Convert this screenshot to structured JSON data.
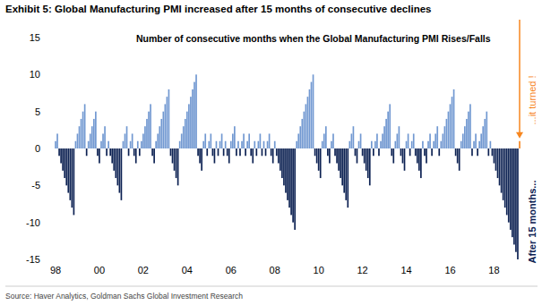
{
  "chart_data": {
    "type": "bar",
    "title": "Exhibit 5: Global Manufacturing PMI increased after 15 months of consecutive declines",
    "subtitle": "Number of consecutive months when the Global Manufacturing PMI Rises/Falls",
    "annotations": [
      "...it turned !",
      "After 15 months..."
    ],
    "source": "Source: Haver Analytics, Goldman Sachs Global Investment Research",
    "ylim": [
      -15,
      15
    ],
    "yticks": [
      -15,
      -10,
      -5,
      0,
      5,
      10,
      15
    ],
    "categories": [
      "98",
      null,
      null,
      null,
      null,
      null,
      null,
      null,
      null,
      null,
      null,
      null,
      null,
      null,
      null,
      null,
      null,
      null,
      null,
      null,
      null,
      null,
      null,
      null,
      "00",
      null,
      null,
      null,
      null,
      null,
      null,
      null,
      null,
      null,
      null,
      null,
      null,
      null,
      null,
      null,
      null,
      null,
      null,
      null,
      null,
      null,
      null,
      null,
      "02",
      null,
      null,
      null,
      null,
      null,
      null,
      null,
      null,
      null,
      null,
      null,
      null,
      null,
      null,
      null,
      null,
      null,
      null,
      null,
      null,
      null,
      null,
      null,
      "04",
      null,
      null,
      null,
      null,
      null,
      null,
      null,
      null,
      null,
      null,
      null,
      null,
      null,
      null,
      null,
      null,
      null,
      null,
      null,
      null,
      null,
      null,
      null,
      "06",
      null,
      null,
      null,
      null,
      null,
      null,
      null,
      null,
      null,
      null,
      null,
      null,
      null,
      null,
      null,
      null,
      null,
      null,
      null,
      null,
      null,
      null,
      null,
      "08",
      null,
      null,
      null,
      null,
      null,
      null,
      null,
      null,
      null,
      null,
      null,
      null,
      null,
      null,
      null,
      null,
      null,
      null,
      null,
      null,
      null,
      null,
      null,
      "10",
      null,
      null,
      null,
      null,
      null,
      null,
      null,
      null,
      null,
      null,
      null,
      null,
      null,
      null,
      null,
      null,
      null,
      null,
      null,
      null,
      null,
      null,
      null,
      "12",
      null,
      null,
      null,
      null,
      null,
      null,
      null,
      null,
      null,
      null,
      null,
      null,
      null,
      null,
      null,
      null,
      null,
      null,
      null,
      null,
      null,
      null,
      null,
      "14",
      null,
      null,
      null,
      null,
      null,
      null,
      null,
      null,
      null,
      null,
      null,
      null,
      null,
      null,
      null,
      null,
      null,
      null,
      null,
      null,
      null,
      null,
      null,
      "16",
      null,
      null,
      null,
      null,
      null,
      null,
      null,
      null,
      null,
      null,
      null,
      null,
      null,
      null,
      null,
      null,
      null,
      null,
      null,
      null,
      null,
      null,
      null,
      "18",
      null,
      null,
      null,
      null,
      null,
      null,
      null,
      null,
      null,
      null,
      null,
      null,
      null,
      null
    ],
    "values": [
      1,
      2,
      -1,
      -2,
      -3,
      -4,
      -5,
      -6,
      -7,
      -8,
      -9,
      1,
      2,
      3,
      4,
      5,
      6,
      -1,
      1,
      2,
      3,
      4,
      5,
      -1,
      -2,
      1,
      2,
      3,
      -1,
      1,
      -1,
      -2,
      -3,
      -4,
      -5,
      -6,
      -7,
      1,
      2,
      3,
      -1,
      1,
      2,
      -1,
      -2,
      1,
      -1,
      1,
      2,
      3,
      4,
      5,
      6,
      -1,
      -2,
      1,
      2,
      3,
      4,
      5,
      6,
      7,
      8,
      -1,
      -2,
      -3,
      -4,
      -5,
      1,
      2,
      3,
      4,
      5,
      6,
      7,
      8,
      9,
      10,
      -1,
      -2,
      -3,
      1,
      2,
      -1,
      1,
      2,
      -1,
      -2,
      1,
      -1,
      1,
      2,
      -1,
      1,
      -1,
      -2,
      1,
      2,
      3,
      -1,
      1,
      -1,
      1,
      2,
      -1,
      1,
      2,
      -1,
      -2,
      1,
      -1,
      1,
      2,
      -1,
      1,
      -1,
      1,
      2,
      -1,
      -2,
      1,
      -1,
      -2,
      -3,
      -4,
      -5,
      -6,
      -7,
      -8,
      -9,
      -10,
      -11,
      1,
      2,
      3,
      4,
      5,
      6,
      7,
      8,
      9,
      10,
      -1,
      -2,
      -3,
      -4,
      1,
      2,
      3,
      -1,
      -2,
      1,
      2,
      -1,
      -2,
      -3,
      -4,
      -5,
      -6,
      -7,
      -8,
      1,
      2,
      3,
      -1,
      -2,
      1,
      2,
      -1,
      -2,
      -3,
      -4,
      -5,
      1,
      -1,
      1,
      2,
      -1,
      1,
      2,
      3,
      4,
      5,
      6,
      -1,
      -2,
      1,
      2,
      3,
      -1,
      -2,
      -3,
      1,
      2,
      -1,
      1,
      2,
      -1,
      -2,
      -3,
      -4,
      1,
      -1,
      -2,
      1,
      2,
      -1,
      1,
      2,
      3,
      -1,
      1,
      2,
      3,
      4,
      5,
      6,
      7,
      8,
      -1,
      -2,
      -3,
      1,
      2,
      3,
      4,
      5,
      6,
      -1,
      1,
      2,
      -1,
      1,
      2,
      3,
      4,
      5,
      -1,
      1,
      -1,
      -2,
      -3,
      -4,
      -5,
      -6,
      -7,
      -8,
      -9,
      -10,
      -11,
      -12,
      -13,
      -14,
      -15,
      1
    ],
    "colors": [
      "#7198d1",
      "#7198d1",
      "#0c2152",
      "#0c2152",
      "#0c2152",
      "#0c2152",
      "#0c2152",
      "#0c2152",
      "#0c2152",
      "#0c2152",
      "#0c2152",
      "#7198d1",
      "#7198d1",
      "#7198d1",
      "#7198d1",
      "#7198d1",
      "#7198d1",
      "#0c2152",
      "#7198d1",
      "#7198d1",
      "#7198d1",
      "#7198d1",
      "#7198d1",
      "#0c2152",
      "#0c2152",
      "#7198d1",
      "#7198d1",
      "#7198d1",
      "#0c2152",
      "#7198d1",
      "#0c2152",
      "#0c2152",
      "#0c2152",
      "#0c2152",
      "#0c2152",
      "#0c2152",
      "#0c2152",
      "#7198d1",
      "#7198d1",
      "#7198d1",
      "#0c2152",
      "#7198d1",
      "#7198d1",
      "#0c2152",
      "#0c2152",
      "#7198d1",
      "#0c2152",
      "#7198d1",
      "#7198d1",
      "#7198d1",
      "#7198d1",
      "#7198d1",
      "#7198d1",
      "#0c2152",
      "#0c2152",
      "#7198d1",
      "#7198d1",
      "#7198d1",
      "#7198d1",
      "#7198d1",
      "#7198d1",
      "#7198d1",
      "#7198d1",
      "#0c2152",
      "#0c2152",
      "#0c2152",
      "#0c2152",
      "#0c2152",
      "#7198d1",
      "#7198d1",
      "#7198d1",
      "#7198d1",
      "#7198d1",
      "#7198d1",
      "#7198d1",
      "#7198d1",
      "#7198d1",
      "#7198d1",
      "#0c2152",
      "#0c2152",
      "#0c2152",
      "#7198d1",
      "#7198d1",
      "#0c2152",
      "#7198d1",
      "#7198d1",
      "#0c2152",
      "#0c2152",
      "#7198d1",
      "#0c2152",
      "#7198d1",
      "#7198d1",
      "#0c2152",
      "#7198d1",
      "#0c2152",
      "#0c2152",
      "#7198d1",
      "#7198d1",
      "#7198d1",
      "#0c2152",
      "#7198d1",
      "#0c2152",
      "#7198d1",
      "#7198d1",
      "#0c2152",
      "#7198d1",
      "#7198d1",
      "#0c2152",
      "#0c2152",
      "#7198d1",
      "#0c2152",
      "#7198d1",
      "#7198d1",
      "#0c2152",
      "#7198d1",
      "#0c2152",
      "#7198d1",
      "#7198d1",
      "#0c2152",
      "#0c2152",
      "#7198d1",
      "#0c2152",
      "#0c2152",
      "#0c2152",
      "#0c2152",
      "#0c2152",
      "#0c2152",
      "#0c2152",
      "#0c2152",
      "#0c2152",
      "#0c2152",
      "#0c2152",
      "#7198d1",
      "#7198d1",
      "#7198d1",
      "#7198d1",
      "#7198d1",
      "#7198d1",
      "#7198d1",
      "#7198d1",
      "#7198d1",
      "#7198d1",
      "#0c2152",
      "#0c2152",
      "#0c2152",
      "#0c2152",
      "#7198d1",
      "#7198d1",
      "#7198d1",
      "#0c2152",
      "#0c2152",
      "#7198d1",
      "#7198d1",
      "#0c2152",
      "#0c2152",
      "#0c2152",
      "#0c2152",
      "#0c2152",
      "#0c2152",
      "#0c2152",
      "#0c2152",
      "#7198d1",
      "#7198d1",
      "#7198d1",
      "#0c2152",
      "#0c2152",
      "#7198d1",
      "#7198d1",
      "#0c2152",
      "#0c2152",
      "#0c2152",
      "#0c2152",
      "#0c2152",
      "#7198d1",
      "#0c2152",
      "#7198d1",
      "#7198d1",
      "#0c2152",
      "#7198d1",
      "#7198d1",
      "#7198d1",
      "#7198d1",
      "#7198d1",
      "#7198d1",
      "#0c2152",
      "#0c2152",
      "#7198d1",
      "#7198d1",
      "#7198d1",
      "#0c2152",
      "#0c2152",
      "#0c2152",
      "#7198d1",
      "#7198d1",
      "#0c2152",
      "#7198d1",
      "#7198d1",
      "#0c2152",
      "#0c2152",
      "#0c2152",
      "#0c2152",
      "#7198d1",
      "#0c2152",
      "#0c2152",
      "#7198d1",
      "#7198d1",
      "#0c2152",
      "#7198d1",
      "#7198d1",
      "#7198d1",
      "#0c2152",
      "#7198d1",
      "#7198d1",
      "#7198d1",
      "#7198d1",
      "#7198d1",
      "#7198d1",
      "#7198d1",
      "#7198d1",
      "#0c2152",
      "#0c2152",
      "#0c2152",
      "#7198d1",
      "#7198d1",
      "#7198d1",
      "#7198d1",
      "#7198d1",
      "#7198d1",
      "#0c2152",
      "#7198d1",
      "#7198d1",
      "#0c2152",
      "#7198d1",
      "#7198d1",
      "#7198d1",
      "#7198d1",
      "#7198d1",
      "#0c2152",
      "#7198d1",
      "#0c2152",
      "#0c2152",
      "#0c2152",
      "#0c2152",
      "#0c2152",
      "#0c2152",
      "#0c2152",
      "#0c2152",
      "#0c2152",
      "#0c2152",
      "#0c2152",
      "#0c2152",
      "#0c2152",
      "#0c2152",
      "#0c2152",
      "#f7861f"
    ]
  }
}
